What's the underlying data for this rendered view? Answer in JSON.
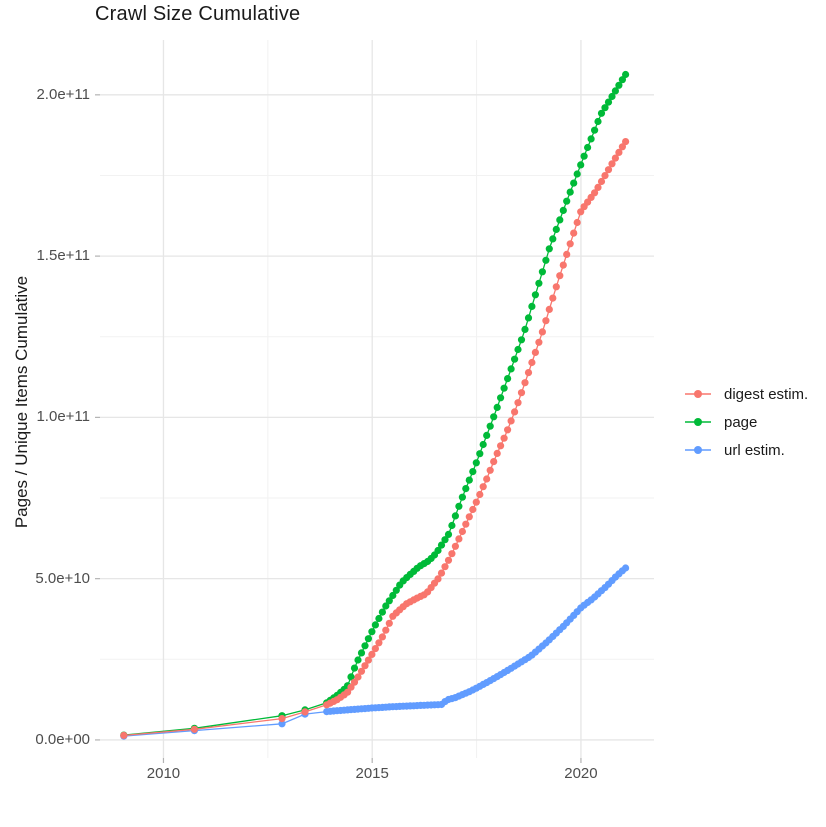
{
  "title": "Crawl Size Cumulative",
  "y_axis": {
    "title": "Pages / Unique Items Cumulative",
    "tick_labels": [
      "0.0e+00",
      "5.0e+10",
      "1.0e+11",
      "1.5e+11",
      "2.0e+11"
    ]
  },
  "x_axis": {
    "tick_labels": [
      "2010",
      "2015",
      "2020"
    ]
  },
  "legend": {
    "position": "right",
    "items": [
      {
        "label": "digest estim.",
        "color": "#F8766D"
      },
      {
        "label": "page",
        "color": "#00BA38"
      },
      {
        "label": "url estim.",
        "color": "#619CFF"
      }
    ]
  },
  "chart_data": {
    "type": "scatter",
    "title": "Crawl Size Cumulative",
    "xlabel": "",
    "ylabel": "Pages / Unique Items Cumulative",
    "grid": "major+minor",
    "legend_position": "right",
    "xlim": [
      2008.48,
      2021.75
    ],
    "ylim_e9": [
      -5.6,
      217.0
    ],
    "x_major_ticks": [
      2010,
      2015,
      2020
    ],
    "x_minor_ticks": [
      2012.5,
      2017.5
    ],
    "y_major_ticks_e9": [
      0,
      50,
      100,
      150,
      200
    ],
    "y_minor_ticks_e9": [
      25,
      75,
      125,
      175
    ],
    "value_unit": "1e9 pages (billions)",
    "marker_interval_years": 0.08333,
    "note": "Series values read from plot in billions; dots occur roughly monthly from late 2013 onward, interpolated between anchors.",
    "series": [
      {
        "name": "digest estim.",
        "color": "#F8766D",
        "sparse_points": [
          [
            2009.05,
            1.4
          ],
          [
            2010.74,
            3.3
          ],
          [
            2012.84,
            6.6
          ],
          [
            2013.39,
            8.7
          ]
        ],
        "anchors": [
          [
            2013.91,
            10.9
          ],
          [
            2014.15,
            12.4
          ],
          [
            2014.4,
            14.6
          ],
          [
            2014.63,
            18.9
          ],
          [
            2014.97,
            26.0
          ],
          [
            2015.26,
            32.3
          ],
          [
            2015.5,
            38.5
          ],
          [
            2015.82,
            42.2
          ],
          [
            2016.05,
            43.8
          ],
          [
            2016.29,
            45.3
          ],
          [
            2016.6,
            50.3
          ],
          [
            2016.89,
            57.2
          ],
          [
            2017.17,
            64.9
          ],
          [
            2017.5,
            73.9
          ],
          [
            2017.74,
            80.8
          ],
          [
            2017.96,
            87.9
          ],
          [
            2018.2,
            94.7
          ],
          [
            2018.47,
            103.7
          ],
          [
            2018.72,
            113.0
          ],
          [
            2019.06,
            125.8
          ],
          [
            2019.47,
            143.0
          ],
          [
            2020.0,
            164.0
          ],
          [
            2020.36,
            170.2
          ],
          [
            2020.76,
            179.0
          ],
          [
            2021.07,
            185.5
          ]
        ]
      },
      {
        "name": "page",
        "color": "#00BA38",
        "sparse_points": [
          [
            2009.05,
            1.5
          ],
          [
            2010.74,
            3.6
          ],
          [
            2012.84,
            7.5
          ],
          [
            2013.39,
            9.3
          ]
        ],
        "anchors": [
          [
            2013.91,
            11.5
          ],
          [
            2014.15,
            13.7
          ],
          [
            2014.4,
            16.5
          ],
          [
            2014.63,
            24.0
          ],
          [
            2015.04,
            34.8
          ],
          [
            2015.3,
            41.0
          ],
          [
            2015.7,
            48.8
          ],
          [
            2015.9,
            51.2
          ],
          [
            2016.12,
            53.7
          ],
          [
            2016.36,
            55.6
          ],
          [
            2016.53,
            57.8
          ],
          [
            2016.84,
            64.0
          ],
          [
            2017.12,
            74.0
          ],
          [
            2017.46,
            84.8
          ],
          [
            2017.79,
            96.0
          ],
          [
            2018.03,
            104.4
          ],
          [
            2018.27,
            113.0
          ],
          [
            2018.63,
            126.0
          ],
          [
            2019.26,
            153.0
          ],
          [
            2019.6,
            165.0
          ],
          [
            2020.0,
            178.5
          ],
          [
            2020.48,
            194.0
          ],
          [
            2021.07,
            206.3
          ]
        ]
      },
      {
        "name": "url estim.",
        "color": "#619CFF",
        "sparse_points": [
          [
            2009.05,
            1.2
          ],
          [
            2010.74,
            2.9
          ],
          [
            2012.84,
            5.0
          ],
          [
            2013.39,
            8.0
          ]
        ],
        "anchors": [
          [
            2013.91,
            8.8
          ],
          [
            2014.4,
            9.3
          ],
          [
            2015.0,
            9.9
          ],
          [
            2015.5,
            10.3
          ],
          [
            2016.0,
            10.6
          ],
          [
            2016.68,
            11.0
          ],
          [
            2016.78,
            12.4
          ],
          [
            2016.97,
            13.0
          ],
          [
            2017.37,
            15.2
          ],
          [
            2017.76,
            17.9
          ],
          [
            2018.11,
            20.5
          ],
          [
            2018.45,
            23.2
          ],
          [
            2018.8,
            26.0
          ],
          [
            2019.2,
            30.5
          ],
          [
            2019.6,
            35.5
          ],
          [
            2020.0,
            41.0
          ],
          [
            2020.3,
            44.0
          ],
          [
            2020.6,
            47.5
          ],
          [
            2020.85,
            50.8
          ],
          [
            2021.07,
            53.3
          ]
        ]
      }
    ]
  },
  "style": {
    "grid_major_color": "#e6e6e6",
    "grid_minor_color": "#f2f2f2",
    "tick_mark_color": "#b3b3b3",
    "tick_label_color": "#4d4d4d",
    "text_color": "#1a1a1a",
    "background": "#ffffff"
  }
}
